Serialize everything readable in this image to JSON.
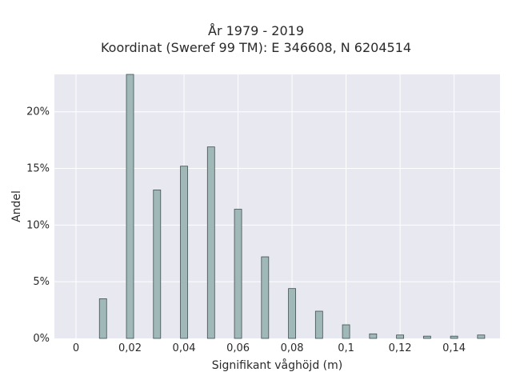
{
  "chart_data": {
    "type": "bar",
    "title": "År 1979 - 2019",
    "subtitle": "Koordinat (Sweref 99 TM): E 346608, N 6204514",
    "xlabel": "Signifikant våghöjd (m)",
    "ylabel": "Andel",
    "xlim": [
      -0.008,
      0.157
    ],
    "ylim": [
      0,
      0.233
    ],
    "x_ticks": [
      0,
      0.02,
      0.04,
      0.06,
      0.08,
      0.1,
      0.12,
      0.14
    ],
    "x_tick_labels": [
      "0",
      "0,02",
      "0,04",
      "0,06",
      "0,08",
      "0,1",
      "0,12",
      "0,14"
    ],
    "y_ticks": [
      0,
      0.05,
      0.1,
      0.15,
      0.2
    ],
    "y_tick_labels": [
      "0%",
      "5%",
      "10%",
      "15%",
      "20%"
    ],
    "x": [
      0.01,
      0.02,
      0.03,
      0.04,
      0.05,
      0.06,
      0.07,
      0.08,
      0.09,
      0.1,
      0.11,
      0.12,
      0.13,
      0.14,
      0.15
    ],
    "values": [
      0.035,
      0.233,
      0.131,
      0.152,
      0.169,
      0.114,
      0.072,
      0.044,
      0.024,
      0.012,
      0.004,
      0.003,
      0.002,
      0.002,
      0.003
    ],
    "grid": true,
    "colors": {
      "plot_background": "#e8e8f0",
      "grid": "#ffffff",
      "bar_fill": "#a0b8b8",
      "bar_stroke": "#3f4f4f"
    }
  }
}
